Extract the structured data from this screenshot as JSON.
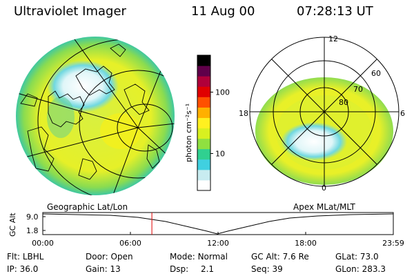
{
  "header": {
    "instrument": "Ultraviolet Imager",
    "date": "11 Aug 00",
    "time": "07:28:13 UT"
  },
  "panels": {
    "left_caption": "Geographic Lat/Lon",
    "right_caption": "Apex MLat/MLT"
  },
  "colorbar": {
    "title": "photon cm⁻²s⁻¹",
    "ticks": [
      {
        "value": 100,
        "label": "100"
      },
      {
        "value": 10,
        "label": "10"
      }
    ],
    "range": [
      2.5,
      400
    ],
    "colors": [
      "#ffffff",
      "#c8ecf0",
      "#40d0e0",
      "#30d090",
      "#90e040",
      "#d8f020",
      "#fff020",
      "#ffb000",
      "#ff5000",
      "#e00000",
      "#b0003a",
      "#60004a",
      "#000000"
    ]
  },
  "mlt_dial": {
    "hour_labels": [
      {
        "label": "12",
        "pos": "top"
      },
      {
        "label": "18",
        "pos": "left"
      },
      {
        "label": "6",
        "pos": "right"
      },
      {
        "label": "0",
        "pos": "bottom"
      }
    ],
    "lat_labels": [
      "60",
      "70",
      "80"
    ]
  },
  "altitude_plot": {
    "ylabel": "GC Alt",
    "y_ticks": [
      "9.0",
      "1.8"
    ],
    "x_ticks": [
      "00:00",
      "06:00",
      "12:00",
      "18:00",
      "23:59"
    ],
    "marker_time_hours": 7.47
  },
  "status": {
    "flt": {
      "label": "Flt:",
      "value": "LBHL"
    },
    "ip": {
      "label": "IP:",
      "value": "36.0"
    },
    "door": {
      "label": "Door:",
      "value": "Open"
    },
    "gain": {
      "label": "Gain:",
      "value": "13"
    },
    "mode": {
      "label": "Mode:",
      "value": "Normal"
    },
    "dsp": {
      "label": "Dsp:",
      "value": "2.1"
    },
    "gcalt": {
      "label": "GC Alt:",
      "value": "7.6 Re"
    },
    "seq": {
      "label": "Seq:",
      "value": "39"
    },
    "glat": {
      "label": "GLat:",
      "value": "73.0"
    },
    "glon": {
      "label": "GLon:",
      "value": "283.3"
    }
  }
}
